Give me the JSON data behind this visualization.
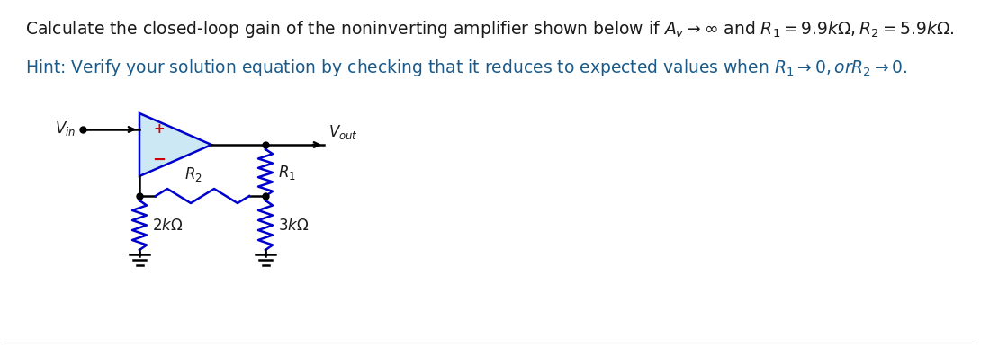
{
  "bg_color": "#ffffff",
  "text_color": "#1a1a1a",
  "wire_color": "#000000",
  "circuit_color": "#0000cc",
  "plus_color": "#cc0000",
  "minus_color": "#cc0000",
  "opamp_fill": "#cce8f4",
  "text_fontsize": 13.5,
  "hint_fontsize": 13.5,
  "circuit_fontsize": 12,
  "line1": "Calculate the closed-loop gain of the noninverting amplifier shown below if $A_v \\rightarrow \\infty$ and $R_1 = 9.9k\\Omega, R_2 = 5.9k\\Omega$.",
  "line2": "Hint: Verify your solution equation by checking that it reduces to expected values when $R_1 \\rightarrow 0, or R_2 \\rightarrow 0$."
}
